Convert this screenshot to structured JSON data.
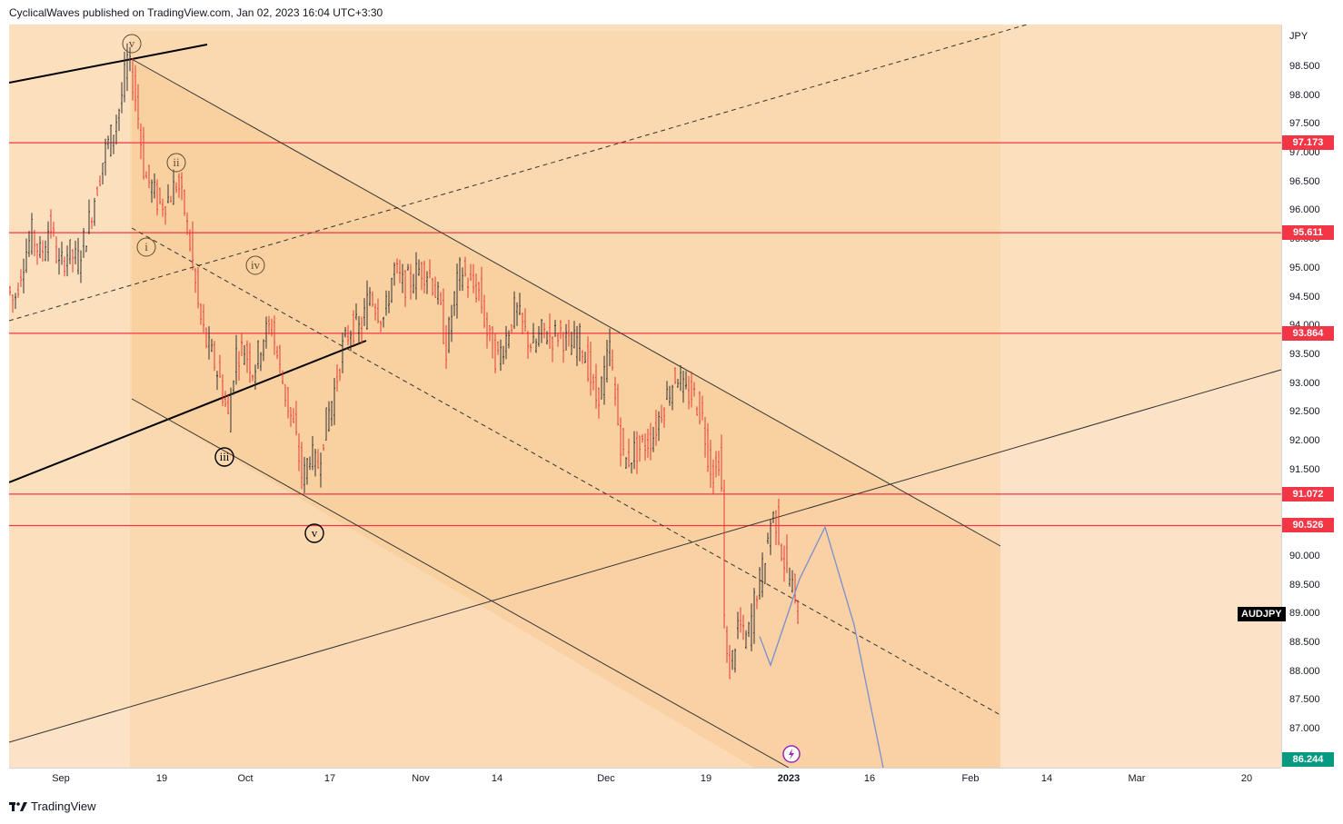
{
  "header": {
    "text": "CyclicalWaves published on TradingView.com, Jan 02, 2023 16:04 UTC+3:30"
  },
  "footer": {
    "brand": "TradingView",
    "logo_icon": "tradingview-logo-icon"
  },
  "symbol": "AUDJPY",
  "currency": "JPY",
  "colors": {
    "background": "#fcdfbd",
    "channel_fill": "#f8cb96",
    "hline": "#f23645",
    "up": "#333333",
    "down": "#e53935",
    "projection": "#7b8fd0",
    "current_tag": "#089981"
  },
  "chart_data": {
    "type": "candlestick",
    "ylim": [
      86.244,
      99.1
    ],
    "price_ticks": [
      "98.500",
      "98.000",
      "97.500",
      "97.000",
      "96.500",
      "96.000",
      "95.500",
      "95.000",
      "94.500",
      "94.000",
      "93.500",
      "93.000",
      "92.500",
      "92.000",
      "91.500",
      "91.000",
      "90.500",
      "90.000",
      "89.500",
      "89.000",
      "88.500",
      "88.000",
      "87.500",
      "87.000"
    ],
    "time_ticks": [
      {
        "label": "Sep",
        "x": 67
      },
      {
        "label": "19",
        "x": 178
      },
      {
        "label": "Oct",
        "x": 270
      },
      {
        "label": "17",
        "x": 363
      },
      {
        "label": "Nov",
        "x": 463
      },
      {
        "label": "14",
        "x": 547
      },
      {
        "label": "Dec",
        "x": 667
      },
      {
        "label": "19",
        "x": 777
      },
      {
        "label": "2023",
        "x": 868
      },
      {
        "label": "16",
        "x": 957
      },
      {
        "label": "Feb",
        "x": 1068
      },
      {
        "label": "14",
        "x": 1152
      },
      {
        "label": "Mar",
        "x": 1251
      },
      {
        "label": "20",
        "x": 1372
      }
    ],
    "horizontal_levels": [
      "97.173",
      "95.611",
      "93.864",
      "91.072",
      "90.526"
    ],
    "current_price": "86.244",
    "price_path": [
      [
        0,
        94.7
      ],
      [
        8,
        94.4
      ],
      [
        18,
        95.1
      ],
      [
        28,
        95.6
      ],
      [
        38,
        95.2
      ],
      [
        48,
        95.8
      ],
      [
        58,
        95.0
      ],
      [
        68,
        95.3
      ],
      [
        78,
        95.1
      ],
      [
        88,
        95.6
      ],
      [
        98,
        96.3
      ],
      [
        108,
        97.0
      ],
      [
        118,
        97.4
      ],
      [
        126,
        97.9
      ],
      [
        133,
        98.6
      ],
      [
        140,
        98.2
      ],
      [
        146,
        97.5
      ],
      [
        152,
        96.6
      ],
      [
        160,
        96.4
      ],
      [
        168,
        96.1
      ],
      [
        178,
        96.2
      ],
      [
        188,
        96.5
      ],
      [
        196,
        96.0
      ],
      [
        204,
        95.2
      ],
      [
        212,
        94.2
      ],
      [
        220,
        93.7
      ],
      [
        228,
        93.4
      ],
      [
        236,
        93.0
      ],
      [
        244,
        92.4
      ],
      [
        252,
        93.5
      ],
      [
        262,
        93.6
      ],
      [
        272,
        93.2
      ],
      [
        282,
        93.8
      ],
      [
        292,
        94.0
      ],
      [
        300,
        93.3
      ],
      [
        310,
        92.6
      ],
      [
        318,
        92.1
      ],
      [
        326,
        91.3
      ],
      [
        334,
        91.8
      ],
      [
        342,
        91.5
      ],
      [
        350,
        92.2
      ],
      [
        360,
        92.8
      ],
      [
        370,
        93.6
      ],
      [
        380,
        94.0
      ],
      [
        390,
        93.9
      ],
      [
        400,
        94.6
      ],
      [
        408,
        94.3
      ],
      [
        416,
        94.1
      ],
      [
        426,
        95.0
      ],
      [
        436,
        94.7
      ],
      [
        446,
        94.8
      ],
      [
        456,
        95.0
      ],
      [
        466,
        94.9
      ],
      [
        476,
        94.4
      ],
      [
        484,
        93.6
      ],
      [
        492,
        94.4
      ],
      [
        500,
        95.0
      ],
      [
        510,
        94.7
      ],
      [
        520,
        94.6
      ],
      [
        530,
        93.8
      ],
      [
        540,
        93.4
      ],
      [
        550,
        93.8
      ],
      [
        560,
        94.3
      ],
      [
        570,
        93.9
      ],
      [
        580,
        93.6
      ],
      [
        590,
        93.9
      ],
      [
        600,
        93.8
      ],
      [
        610,
        93.9
      ],
      [
        620,
        93.6
      ],
      [
        630,
        93.8
      ],
      [
        640,
        93.3
      ],
      [
        648,
        92.7
      ],
      [
        656,
        93.0
      ],
      [
        664,
        93.6
      ],
      [
        672,
        92.4
      ],
      [
        680,
        91.6
      ],
      [
        690,
        91.8
      ],
      [
        700,
        91.9
      ],
      [
        712,
        92.1
      ],
      [
        722,
        92.6
      ],
      [
        730,
        92.9
      ],
      [
        738,
        93.2
      ],
      [
        746,
        92.8
      ],
      [
        756,
        92.8
      ],
      [
        766,
        92.4
      ],
      [
        774,
        91.6
      ],
      [
        780,
        91.4
      ],
      [
        786,
        91.9
      ],
      [
        790,
        88.9
      ],
      [
        794,
        87.9
      ],
      [
        800,
        88.3
      ],
      [
        806,
        88.9
      ],
      [
        812,
        88.5
      ],
      [
        818,
        88.7
      ],
      [
        824,
        89.3
      ],
      [
        830,
        89.6
      ],
      [
        836,
        90.1
      ],
      [
        842,
        90.7
      ],
      [
        848,
        90.6
      ],
      [
        854,
        90.0
      ],
      [
        860,
        89.7
      ],
      [
        866,
        89.4
      ],
      [
        870,
        89.0
      ]
    ],
    "projection_path": [
      [
        826,
        88.6
      ],
      [
        838,
        88.1
      ],
      [
        870,
        89.6
      ],
      [
        898,
        90.5
      ],
      [
        930,
        88.8
      ],
      [
        963,
        86.244
      ]
    ],
    "wave_labels": [
      {
        "text": "v",
        "x": 145,
        "y": 48,
        "style": "circle"
      },
      {
        "text": "ii",
        "x": 194,
        "y": 179,
        "style": "circle"
      },
      {
        "text": "i",
        "x": 161,
        "y": 272,
        "style": "circle"
      },
      {
        "text": "iv",
        "x": 281,
        "y": 292,
        "style": "circle"
      },
      {
        "text": "iii",
        "x": 247,
        "y": 503,
        "style": "circle-bold"
      },
      {
        "text": "v",
        "x": 346,
        "y": 587,
        "style": "circle-bold"
      }
    ]
  }
}
